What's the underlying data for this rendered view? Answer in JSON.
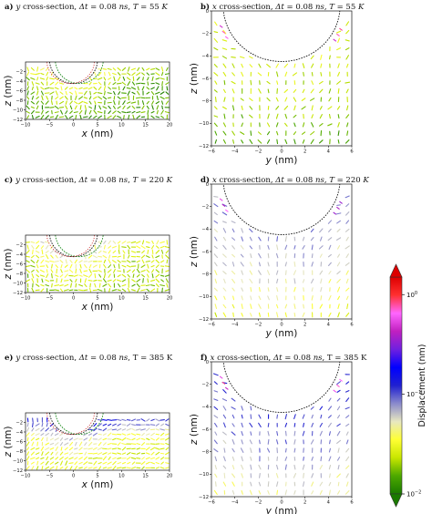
{
  "chart_data": [
    {
      "type": "quiver",
      "panel": "a",
      "title": "y cross-section, Δt = 0.08 ns, T = 55 K",
      "xlabel": "x (nm)",
      "ylabel": "z (nm)",
      "xlim": [
        -10,
        20
      ],
      "ylim": [
        -12,
        0
      ],
      "xticks": [
        "−10",
        "−5",
        "0",
        "5",
        "10",
        "15",
        "20"
      ],
      "yticks": [
        "−2",
        "−4",
        "−6",
        "−8",
        "−10",
        "−12"
      ],
      "tip_radius_nm": 5,
      "tip_center": [
        0,
        0.5
      ],
      "tip2_center": [
        1.2,
        0.5
      ],
      "tip_apex_z": -4.5,
      "dominant_magnitude": "green-yellow (~0.01–0.03 nm)"
    },
    {
      "type": "quiver",
      "panel": "b",
      "title": "x cross-section, Δt = 0.08 ns, T = 55 K",
      "xlabel": "y (nm)",
      "ylabel": "z (nm)",
      "xlim": [
        -6,
        6
      ],
      "ylim": [
        -12,
        0
      ],
      "xticks": [
        "−6",
        "−4",
        "−2",
        "0",
        "2",
        "4",
        "6"
      ],
      "yticks": [
        "0",
        "−2",
        "−4",
        "−6",
        "−8",
        "−10",
        "−12"
      ],
      "tip_radius_nm": 5,
      "tip_center": [
        0,
        0.5
      ],
      "tip_apex_z": -4.5,
      "dominant_magnitude": "green-yellow (~0.01–0.03 nm)"
    },
    {
      "type": "quiver",
      "panel": "c",
      "title": "y cross-section, Δt = 0.08 ns, T = 220 K",
      "xlabel": "x (nm)",
      "ylabel": "z (nm)",
      "xlim": [
        -10,
        20
      ],
      "ylim": [
        -12,
        0
      ],
      "xticks": [
        "−10",
        "−5",
        "0",
        "5",
        "10",
        "15",
        "20"
      ],
      "yticks": [
        "−2",
        "−4",
        "−6",
        "−8",
        "−10",
        "−12"
      ],
      "tip_radius_nm": 5,
      "tip_center": [
        0,
        0.5
      ],
      "tip2_center": [
        1.2,
        0.5
      ],
      "tip_apex_z": -4.5,
      "dominant_magnitude": "yellow-green (~0.02–0.05 nm)"
    },
    {
      "type": "quiver",
      "panel": "d",
      "title": "x cross-section, Δt = 0.08 ns, T = 220 K",
      "xlabel": "y (nm)",
      "ylabel": "z (nm)",
      "xlim": [
        -6,
        6
      ],
      "ylim": [
        -12,
        0
      ],
      "xticks": [
        "−6",
        "−4",
        "−2",
        "0",
        "2",
        "4",
        "6"
      ],
      "yticks": [
        "0",
        "−2",
        "−4",
        "−6",
        "−8",
        "−10",
        "−12"
      ],
      "tip_radius_nm": 5,
      "tip_center": [
        0,
        0.5
      ],
      "tip_apex_z": -4.5,
      "dominant_magnitude": "yellow (~0.03–0.06 nm)"
    },
    {
      "type": "quiver",
      "panel": "e",
      "title": "y cross-section, Δt = 0.08 ns, T = 385 K",
      "xlabel": "x (nm)",
      "ylabel": "z (nm)",
      "xlim": [
        -10,
        20
      ],
      "ylim": [
        -12,
        0
      ],
      "xticks": [
        "−10",
        "−5",
        "0",
        "5",
        "10",
        "15",
        "20"
      ],
      "yticks": [
        "−2",
        "−4",
        "−6",
        "−8",
        "−10",
        "−12"
      ],
      "tip_radius_nm": 5,
      "tip_center": [
        0,
        0.5
      ],
      "tip2_center": [
        1.2,
        0.5
      ],
      "tip_apex_z": -4.5,
      "dominant_magnitude": "blue near surface, yellow deeper (~0.03–0.15 nm)"
    },
    {
      "type": "quiver",
      "panel": "f",
      "title": "x cross-section, Δt = 0.08 ns, T = 385 K",
      "xlabel": "y (nm)",
      "ylabel": "z (nm)",
      "xlim": [
        -6,
        6
      ],
      "ylim": [
        -12,
        0
      ],
      "xticks": [
        "−6",
        "−4",
        "−2",
        "0",
        "2",
        "4",
        "6"
      ],
      "yticks": [
        "0",
        "−2",
        "−4",
        "−6",
        "−8",
        "−10",
        "−12"
      ],
      "tip_radius_nm": 5,
      "tip_center": [
        0,
        0.5
      ],
      "tip_apex_z": -4.5,
      "dominant_magnitude": "yellow-blue (~0.03–0.1 nm)"
    }
  ],
  "panels": [
    {
      "id": "a",
      "letter": "a)",
      "title_parts": [
        [
          "y",
          "i"
        ],
        [
          " cross-section, ",
          "n"
        ],
        [
          "Δt",
          "i"
        ],
        [
          " = 0.08 ",
          "n"
        ],
        [
          "ns",
          "i"
        ],
        [
          ", ",
          "n"
        ],
        [
          "T",
          "i"
        ],
        [
          " = 55 ",
          "n"
        ],
        [
          "K",
          "i"
        ]
      ],
      "xlabel": "x (nm)",
      "ylabel": "z (nm)"
    },
    {
      "id": "b",
      "letter": "b)",
      "title_parts": [
        [
          "x",
          "i"
        ],
        [
          " cross-section, ",
          "n"
        ],
        [
          "Δt",
          "i"
        ],
        [
          " = 0.08 ",
          "n"
        ],
        [
          "ns",
          "i"
        ],
        [
          ", ",
          "n"
        ],
        [
          "T",
          "i"
        ],
        [
          " = 55 ",
          "n"
        ],
        [
          "K",
          "i"
        ]
      ],
      "xlabel": "y (nm)",
      "ylabel": "z (nm)"
    },
    {
      "id": "c",
      "letter": "c)",
      "title_parts": [
        [
          "y",
          "i"
        ],
        [
          " cross-section, ",
          "n"
        ],
        [
          "Δt",
          "i"
        ],
        [
          " = 0.08 ",
          "n"
        ],
        [
          "ns",
          "i"
        ],
        [
          ", ",
          "n"
        ],
        [
          "T",
          "i"
        ],
        [
          " = 220 ",
          "n"
        ],
        [
          "K",
          "i"
        ]
      ],
      "xlabel": "x (nm)",
      "ylabel": "z (nm)"
    },
    {
      "id": "d",
      "letter": "d)",
      "title_parts": [
        [
          "x",
          "i"
        ],
        [
          " cross-section, ",
          "n"
        ],
        [
          "Δt",
          "i"
        ],
        [
          " = 0.08 ",
          "n"
        ],
        [
          "ns",
          "i"
        ],
        [
          ", ",
          "n"
        ],
        [
          "T",
          "i"
        ],
        [
          " = 220 ",
          "n"
        ],
        [
          "K",
          "i"
        ]
      ],
      "xlabel": "y (nm)",
      "ylabel": "z (nm)"
    },
    {
      "id": "e",
      "letter": "e)",
      "title_parts": [
        [
          "y",
          "i"
        ],
        [
          " cross-section, ",
          "n"
        ],
        [
          "Δt",
          "i"
        ],
        [
          " = 0.08 ",
          "n"
        ],
        [
          "ns",
          "i"
        ],
        [
          ", T = 385 K",
          "n"
        ]
      ],
      "xlabel": "x (nm)",
      "ylabel": "z (nm)"
    },
    {
      "id": "f",
      "letter": "f)",
      "title_parts": [
        [
          "x",
          "i"
        ],
        [
          " cross-section, ",
          "n"
        ],
        [
          "Δt",
          "i"
        ],
        [
          " = 0.08 ",
          "n"
        ],
        [
          "ns",
          "i"
        ],
        [
          ", T = 385 K",
          "n"
        ]
      ],
      "xlabel": "y (nm)",
      "ylabel": "z (nm)"
    }
  ],
  "colorbar": {
    "label": "Displacement (nm)",
    "scale": "log",
    "range": [
      0.01,
      1.5
    ],
    "ticks": [
      {
        "value": 1,
        "base": "10",
        "exp": "0"
      },
      {
        "value": 0.1,
        "base": "10",
        "exp": "−1"
      },
      {
        "value": 0.01,
        "base": "10",
        "exp": "−2"
      }
    ],
    "colors": [
      "#1a7a00",
      "#4ca800",
      "#c8e600",
      "#ffff33",
      "#e8e8c0",
      "#8a8acc",
      "#2020d0",
      "#0000ff",
      "#7020e0",
      "#c020c0",
      "#ff66ff",
      "#ff3030",
      "#dd0000"
    ]
  }
}
